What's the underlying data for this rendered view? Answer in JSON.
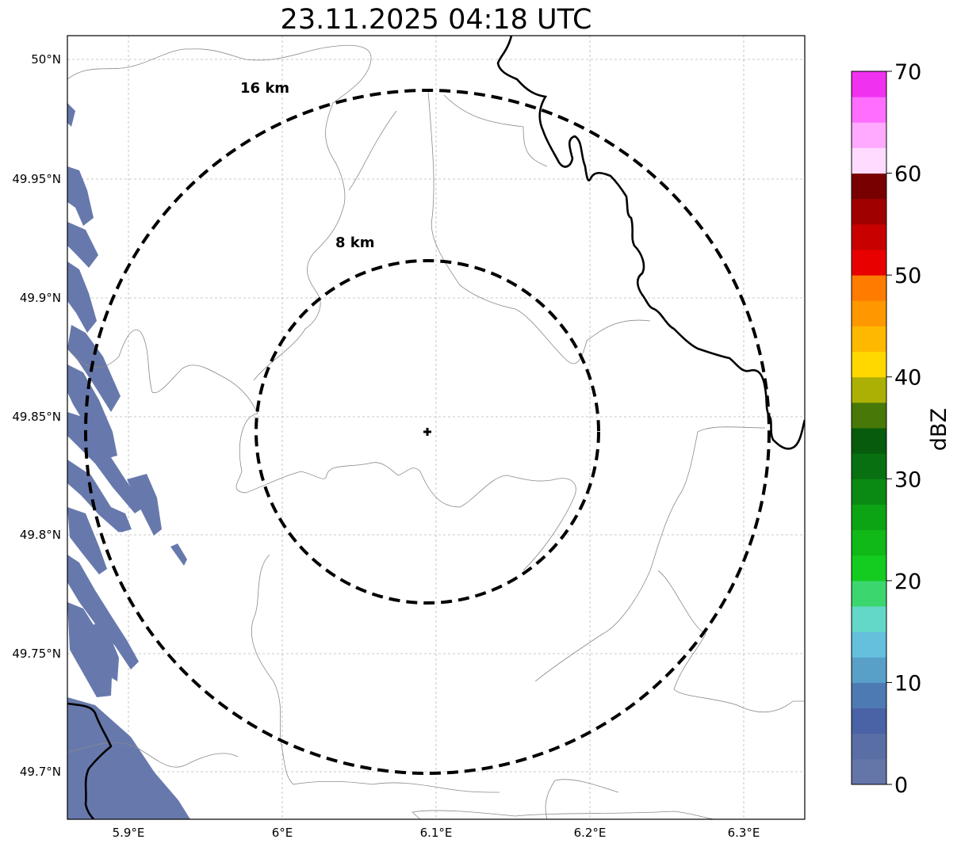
{
  "title": "23.11.2025 04:18 UTC",
  "map": {
    "lon_range": [
      5.86,
      6.34
    ],
    "lat_range": [
      49.68,
      50.01
    ],
    "lon_ticks": [
      "5.9°E",
      "6°E",
      "6.1°E",
      "6.2°E",
      "6.3°E"
    ],
    "lat_ticks": [
      "50°N",
      "49.95°N",
      "49.9°N",
      "49.85°N",
      "49.8°N",
      "49.75°N",
      "49.7°N"
    ],
    "radar_center": {
      "lon": 6.095,
      "lat": 49.843
    },
    "range_rings": [
      {
        "label": "8 km",
        "radius_km": 8
      },
      {
        "label": "16 km",
        "radius_km": 16
      }
    ],
    "gridlines": true,
    "echo_region": "western edge, ~0-10 dBZ"
  },
  "colorbar": {
    "label": "dBZ",
    "ticks": [
      "0",
      "10",
      "20",
      "30",
      "40",
      "50",
      "60",
      "70"
    ],
    "range": [
      0,
      70
    ],
    "step": 2.5,
    "colors": [
      "#6475a8",
      "#5a6ea6",
      "#4a62a6",
      "#4e7ab4",
      "#58a0c8",
      "#64c0dc",
      "#64d8c8",
      "#3cd66e",
      "#14cc20",
      "#10b818",
      "#0ca414",
      "#0a8a12",
      "#087010",
      "#065c0c",
      "#487808",
      "#acb004",
      "#ffd800",
      "#ffb800",
      "#ff9800",
      "#ff7c00",
      "#e80000",
      "#c80000",
      "#a00000",
      "#780000",
      "#ffdcff",
      "#ffaaff",
      "#ff6eff",
      "#f032f0"
    ]
  }
}
